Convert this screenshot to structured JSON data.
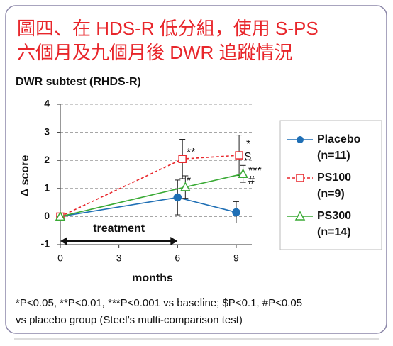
{
  "chart_data": {
    "type": "line",
    "title": [
      "圖四、在 HDS-R 低分組，使用 S-PS",
      "六個月及九個月後 DWR 追蹤情況"
    ],
    "subtitle": "DWR subtest (RHDS-R)",
    "x_label": "months",
    "y_label": "Δ score",
    "xlim": [
      0,
      9.8
    ],
    "ylim": [
      -1,
      4
    ],
    "xticks": [
      0,
      3,
      6,
      9
    ],
    "yticks": [
      -1,
      0,
      1,
      2,
      3,
      4
    ],
    "grid": true,
    "series": [
      {
        "name": "Placebo",
        "sample": "(n=11)",
        "color": "#1f6fb5",
        "dashed": false,
        "marker": "circle",
        "x": [
          0,
          6,
          9
        ],
        "values": [
          0,
          0.68,
          0.15
        ],
        "errors": [
          null,
          0.62,
          0.38
        ]
      },
      {
        "name": "PS100",
        "sample": "(n=9)",
        "color": "#e8262b",
        "dashed": true,
        "marker": "square",
        "x": [
          0,
          6.25,
          9.15
        ],
        "values": [
          0,
          2.05,
          2.18
        ],
        "errors": [
          null,
          0.7,
          0.72
        ]
      },
      {
        "name": "PS300",
        "sample": "(n=14)",
        "color": "#3aaa35",
        "dashed": false,
        "marker": "triangle",
        "x": [
          0,
          6.4,
          9.35
        ],
        "values": [
          0,
          1.05,
          1.52
        ],
        "errors": [
          null,
          0.4,
          0.3
        ]
      }
    ],
    "annotations": [
      "**",
      "*",
      "*",
      "$",
      "***",
      "#"
    ],
    "treatment_label": "treatment",
    "treatment_period": [
      0,
      6
    ],
    "footnote": [
      "*P<0.05, **P<0.01, ***P<0.001 vs baseline; $P<0.1, #P<0.05",
      "vs placebo group (Steel’s multi-comparison test)"
    ]
  }
}
